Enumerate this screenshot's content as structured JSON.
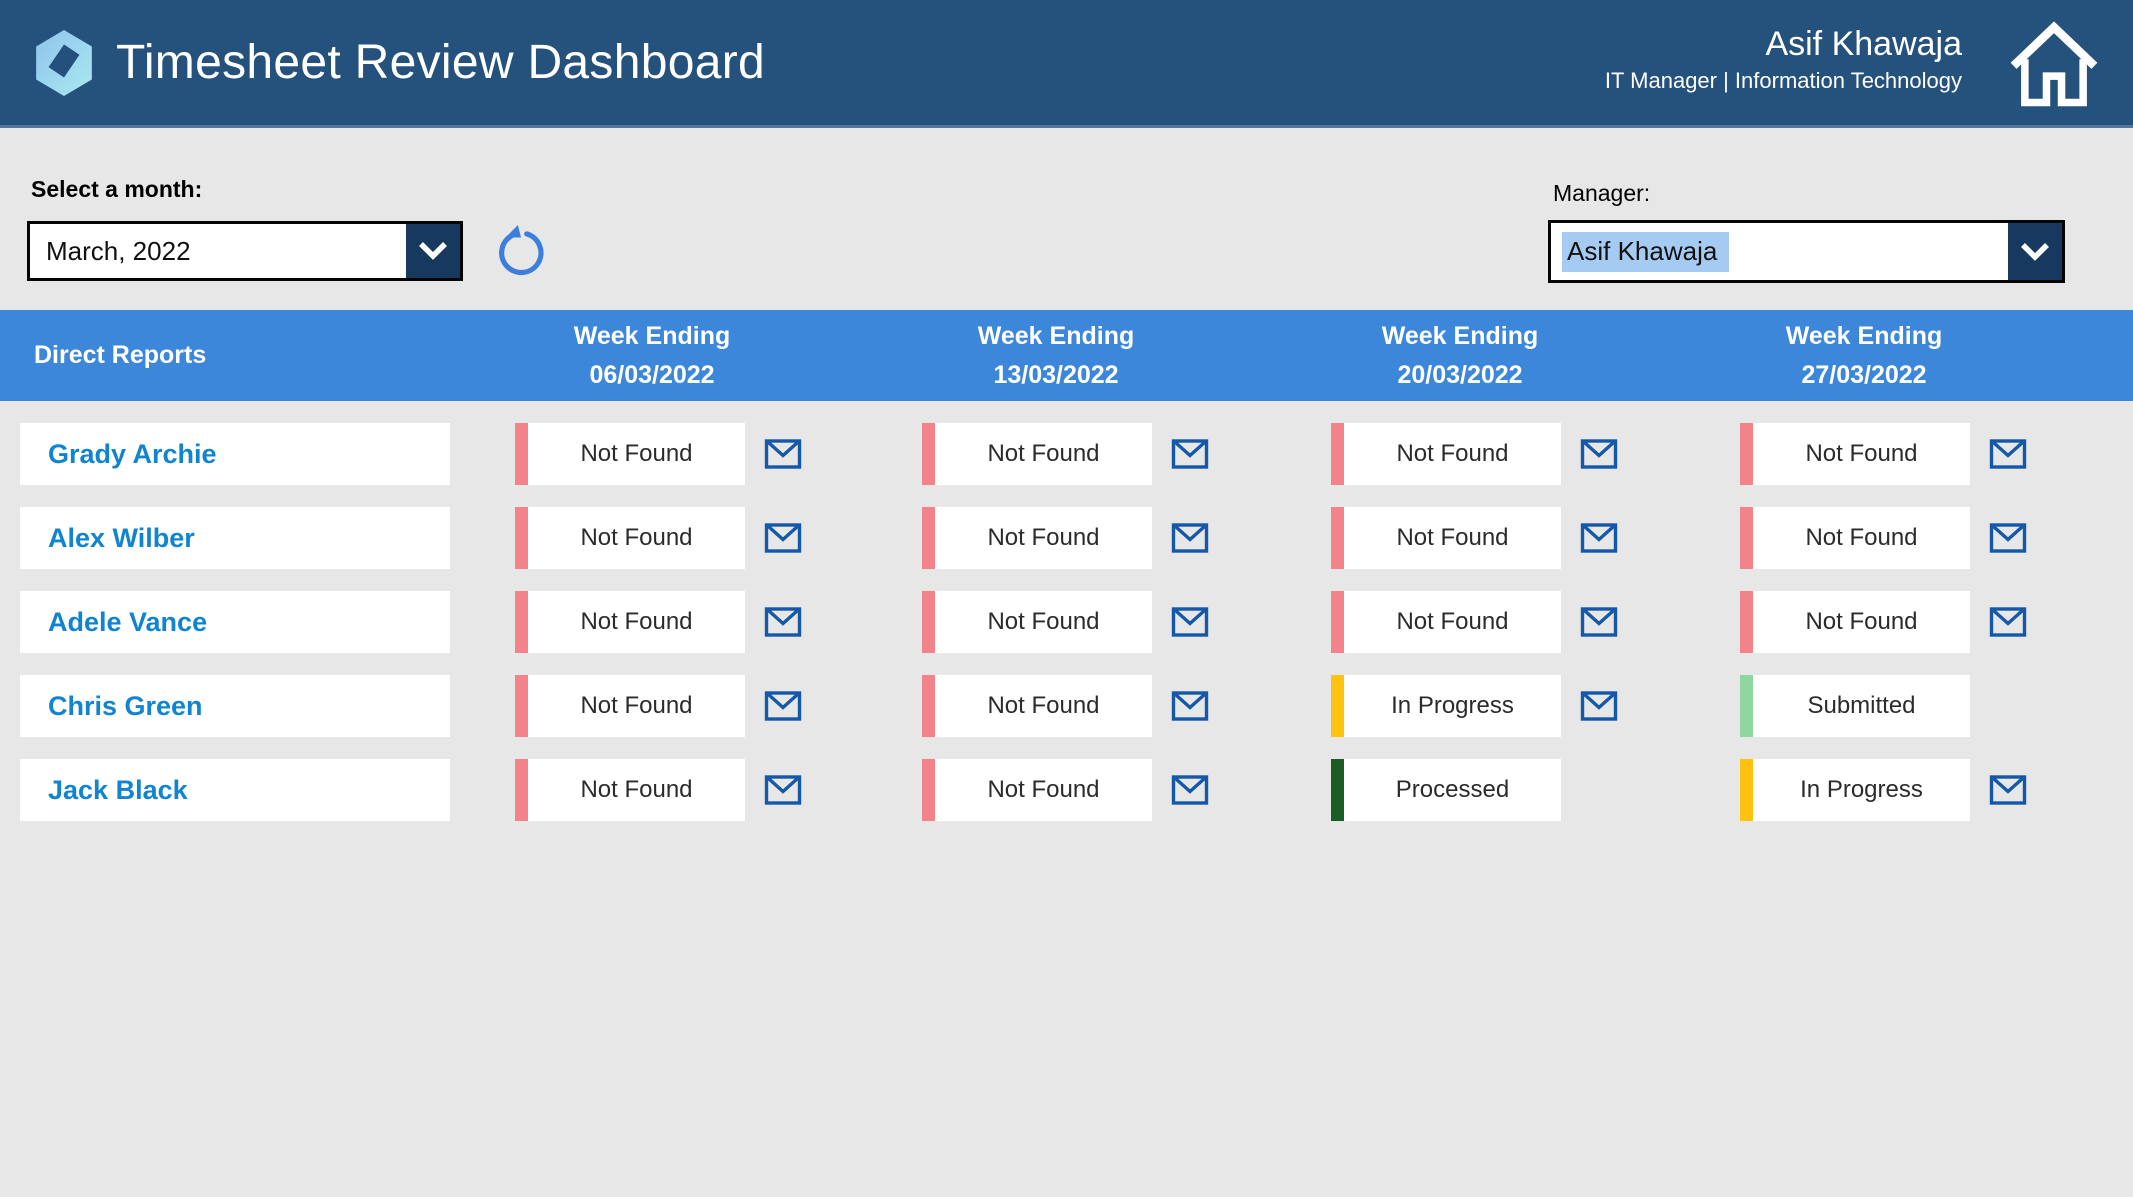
{
  "header": {
    "title": "Timesheet Review Dashboard",
    "user": {
      "name": "Asif Khawaja",
      "role": "IT Manager | Information Technology"
    }
  },
  "filters": {
    "month": {
      "label": "Select a month:",
      "value": "March, 2022"
    },
    "manager": {
      "label": "Manager:",
      "value": "Asif Khawaja"
    }
  },
  "table": {
    "direct_reports_header": "Direct Reports",
    "week_headers": [
      {
        "title": "Week Ending",
        "date": "06/03/2022"
      },
      {
        "title": "Week Ending",
        "date": "13/03/2022"
      },
      {
        "title": "Week Ending",
        "date": "20/03/2022"
      },
      {
        "title": "Week Ending",
        "date": "27/03/2022"
      }
    ],
    "rows": [
      {
        "name": "Grady Archie",
        "statuses": [
          {
            "label": "Not Found",
            "envelope": true
          },
          {
            "label": "Not Found",
            "envelope": true
          },
          {
            "label": "Not Found",
            "envelope": true
          },
          {
            "label": "Not Found",
            "envelope": true
          }
        ]
      },
      {
        "name": "Alex Wilber",
        "statuses": [
          {
            "label": "Not Found",
            "envelope": true
          },
          {
            "label": "Not Found",
            "envelope": true
          },
          {
            "label": "Not Found",
            "envelope": true
          },
          {
            "label": "Not Found",
            "envelope": true
          }
        ]
      },
      {
        "name": "Adele Vance",
        "statuses": [
          {
            "label": "Not Found",
            "envelope": true
          },
          {
            "label": "Not Found",
            "envelope": true
          },
          {
            "label": "Not Found",
            "envelope": true
          },
          {
            "label": "Not Found",
            "envelope": true
          }
        ]
      },
      {
        "name": "Chris Green",
        "statuses": [
          {
            "label": "Not Found",
            "envelope": true
          },
          {
            "label": "Not Found",
            "envelope": true
          },
          {
            "label": "In Progress",
            "envelope": true
          },
          {
            "label": "Submitted",
            "envelope": false
          }
        ]
      },
      {
        "name": "Jack Black",
        "statuses": [
          {
            "label": "Not Found",
            "envelope": true
          },
          {
            "label": "Not Found",
            "envelope": true
          },
          {
            "label": "Processed",
            "envelope": false
          },
          {
            "label": "In Progress",
            "envelope": true
          }
        ]
      }
    ]
  },
  "status_colors": {
    "Not Found": "#F2838B",
    "In Progress": "#FFC20E",
    "Submitted": "#8FD6A1",
    "Processed": "#1A5E25"
  },
  "icons": {
    "logo": "hexagon-cube-logo",
    "home": "home-icon",
    "refresh": "refresh-icon",
    "dropdown": "chevron-down-icon",
    "envelope": "email-envelope-icon"
  },
  "theme": {
    "header_bg": "#25517D",
    "table_header_bg": "#3D87DB",
    "accent_name_color": "#1184CF",
    "envelope_color": "#1558A7",
    "refresh_color": "#3D7EDC",
    "dropdown_button_bg": "#17395F",
    "selection_highlight": "#A6CBF3",
    "page_bg": "#E7E7E7"
  }
}
